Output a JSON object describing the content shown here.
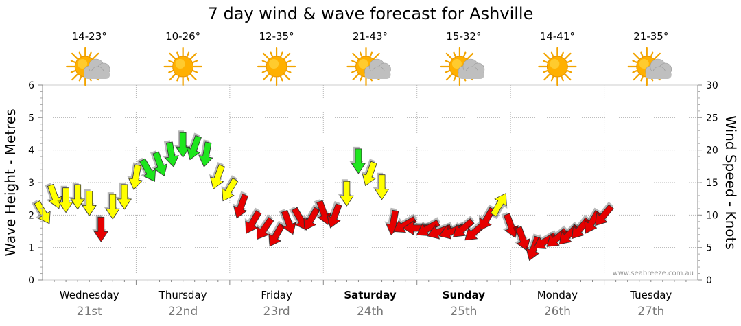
{
  "title": "7 day wind & wave forecast for Ashville",
  "credit": "www.seabreeze.com.au",
  "colors": {
    "red": "#e60000",
    "yellow": "#ffff00",
    "green": "#1ee61e",
    "grid": "#b4b4b4",
    "sun": "#ffb000",
    "cloud": "#bfbfbf"
  },
  "days": [
    {
      "name": "Wednesday",
      "date": "21st",
      "temp": "14-23°",
      "icon": "partly-cloudy-icon",
      "bold": false
    },
    {
      "name": "Thursday",
      "date": "22nd",
      "temp": "10-26°",
      "icon": "sunny-icon",
      "bold": false
    },
    {
      "name": "Friday",
      "date": "23rd",
      "temp": "12-35°",
      "icon": "sunny-icon",
      "bold": false
    },
    {
      "name": "Saturday",
      "date": "24th",
      "temp": "21-43°",
      "icon": "partly-cloudy-icon",
      "bold": true
    },
    {
      "name": "Sunday",
      "date": "25th",
      "temp": "15-32°",
      "icon": "partly-cloudy-icon",
      "bold": true
    },
    {
      "name": "Monday",
      "date": "26th",
      "temp": "14-41°",
      "icon": "sunny-icon",
      "bold": false
    },
    {
      "name": "Tuesday",
      "date": "27th",
      "temp": "21-35°",
      "icon": "partly-cloudy-icon",
      "bold": false
    }
  ],
  "chart_data": {
    "type": "scatter",
    "title": "7 day wind & wave forecast for Ashville",
    "ylabel_left": "Wave Height - Metres",
    "ylabel_right": "Wind Speed - Knots",
    "ylim_left": [
      0,
      6
    ],
    "ylim_right": [
      0,
      30
    ],
    "yticks_left": [
      "0",
      "1",
      "2",
      "3",
      "4",
      "5",
      "6"
    ],
    "yticks_right": [
      "0",
      "5",
      "10",
      "15",
      "20",
      "25",
      "30"
    ],
    "x_unit": "hours from start of Wednesday",
    "x_range": [
      0,
      168
    ],
    "arrow_colors": {
      "red": "below 12 knots",
      "yellow": "12-20 knots",
      "green": "above 20 knots"
    },
    "series": [
      {
        "name": "Wind arrows",
        "points": [
          {
            "t": 0,
            "wave": 2.1,
            "dir": 150,
            "level": "yellow"
          },
          {
            "t": 3,
            "wave": 2.6,
            "dir": 160,
            "level": "yellow"
          },
          {
            "t": 6,
            "wave": 2.5,
            "dir": 180,
            "level": "yellow"
          },
          {
            "t": 9,
            "wave": 2.6,
            "dir": 180,
            "level": "yellow"
          },
          {
            "t": 12,
            "wave": 2.4,
            "dir": 180,
            "level": "yellow"
          },
          {
            "t": 15,
            "wave": 1.6,
            "dir": 180,
            "level": "red"
          },
          {
            "t": 18,
            "wave": 2.3,
            "dir": 180,
            "level": "yellow"
          },
          {
            "t": 21,
            "wave": 2.6,
            "dir": 180,
            "level": "yellow"
          },
          {
            "t": 24,
            "wave": 3.2,
            "dir": 190,
            "level": "yellow"
          },
          {
            "t": 27,
            "wave": 3.4,
            "dir": 150,
            "level": "green"
          },
          {
            "t": 30,
            "wave": 3.6,
            "dir": 160,
            "level": "green"
          },
          {
            "t": 33,
            "wave": 3.9,
            "dir": 170,
            "level": "green"
          },
          {
            "t": 36,
            "wave": 4.2,
            "dir": 180,
            "level": "green"
          },
          {
            "t": 39,
            "wave": 4.1,
            "dir": 200,
            "level": "green"
          },
          {
            "t": 42,
            "wave": 3.9,
            "dir": 190,
            "level": "green"
          },
          {
            "t": 45,
            "wave": 3.2,
            "dir": 200,
            "level": "yellow"
          },
          {
            "t": 48,
            "wave": 2.8,
            "dir": 210,
            "level": "yellow"
          },
          {
            "t": 51,
            "wave": 2.3,
            "dir": 200,
            "level": "red"
          },
          {
            "t": 54,
            "wave": 1.8,
            "dir": 210,
            "level": "red"
          },
          {
            "t": 57,
            "wave": 1.6,
            "dir": 215,
            "level": "red"
          },
          {
            "t": 60,
            "wave": 1.4,
            "dir": 210,
            "level": "red"
          },
          {
            "t": 63,
            "wave": 1.8,
            "dir": 160,
            "level": "red"
          },
          {
            "t": 66,
            "wave": 1.9,
            "dir": 150,
            "level": "red"
          },
          {
            "t": 69,
            "wave": 1.9,
            "dir": 210,
            "level": "red"
          },
          {
            "t": 72,
            "wave": 2.1,
            "dir": 160,
            "level": "red"
          },
          {
            "t": 75,
            "wave": 2.0,
            "dir": 200,
            "level": "red"
          },
          {
            "t": 78,
            "wave": 2.7,
            "dir": 180,
            "level": "yellow"
          },
          {
            "t": 81,
            "wave": 3.7,
            "dir": 180,
            "level": "green"
          },
          {
            "t": 84,
            "wave": 3.3,
            "dir": 200,
            "level": "yellow"
          },
          {
            "t": 87,
            "wave": 2.9,
            "dir": 180,
            "level": "yellow"
          },
          {
            "t": 90,
            "wave": 1.8,
            "dir": 190,
            "level": "red"
          },
          {
            "t": 93,
            "wave": 1.7,
            "dir": 240,
            "level": "red"
          },
          {
            "t": 96,
            "wave": 1.6,
            "dir": 270,
            "level": "red"
          },
          {
            "t": 99,
            "wave": 1.6,
            "dir": 240,
            "level": "red"
          },
          {
            "t": 102,
            "wave": 1.5,
            "dir": 250,
            "level": "red"
          },
          {
            "t": 105,
            "wave": 1.5,
            "dir": 250,
            "level": "red"
          },
          {
            "t": 108,
            "wave": 1.6,
            "dir": 230,
            "level": "red"
          },
          {
            "t": 111,
            "wave": 1.5,
            "dir": 230,
            "level": "red"
          },
          {
            "t": 114,
            "wave": 1.9,
            "dir": 210,
            "level": "red"
          },
          {
            "t": 117,
            "wave": 2.3,
            "dir": 30,
            "level": "yellow"
          },
          {
            "t": 120,
            "wave": 1.7,
            "dir": 160,
            "level": "red"
          },
          {
            "t": 123,
            "wave": 1.3,
            "dir": 160,
            "level": "red"
          },
          {
            "t": 126,
            "wave": 1.0,
            "dir": 200,
            "level": "red"
          },
          {
            "t": 129,
            "wave": 1.2,
            "dir": 240,
            "level": "red"
          },
          {
            "t": 132,
            "wave": 1.3,
            "dir": 230,
            "level": "red"
          },
          {
            "t": 135,
            "wave": 1.4,
            "dir": 225,
            "level": "red"
          },
          {
            "t": 138,
            "wave": 1.6,
            "dir": 220,
            "level": "red"
          },
          {
            "t": 141,
            "wave": 1.8,
            "dir": 210,
            "level": "red"
          },
          {
            "t": 144,
            "wave": 2.0,
            "dir": 220,
            "level": "red"
          }
        ]
      }
    ]
  }
}
